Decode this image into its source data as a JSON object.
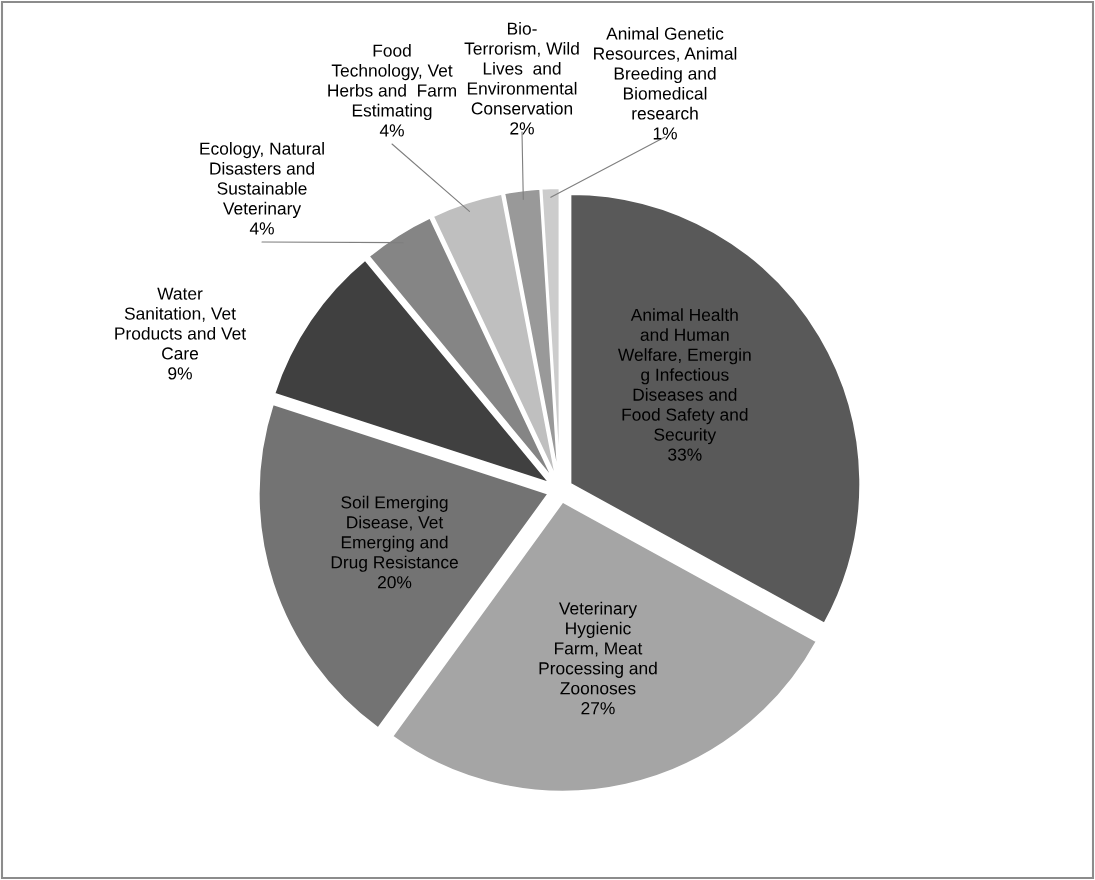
{
  "chart_data": {
    "type": "pie",
    "categories": [
      "Animal Health\nand Human\nWelfare, Emergin\ng Infectious\nDiseases and\nFood Safety and\nSecurity",
      "Veterinary\nHygienic\nFarm, Meat\nProcessing and\nZoonoses",
      "Soil Emerging\nDisease, Vet\nEmerging and\nDrug Resistance",
      "Water\nSanitation, Vet\nProducts and Vet\nCare",
      "Ecology, Natural\nDisasters and\nSustainable\nVeterinary",
      "Food\nTechnology, Vet\nHerbs and  Farm\nEstimating",
      "Bio-\nTerrorism, Wild\nLives  and\nEnvironmental\nConservation",
      "Animal Genetic\nResources, Animal\nBreeding and\nBiomedical\nresearch"
    ],
    "values": [
      33,
      27,
      20,
      9,
      4,
      4,
      2,
      1
    ],
    "value_labels": [
      "33%",
      "27%",
      "20%",
      "9%",
      "4%",
      "4%",
      "2%",
      "1%"
    ],
    "colors": [
      "#595959",
      "#a5a5a5",
      "#737373",
      "#404040",
      "#858585",
      "#bfbfbf",
      "#999999",
      "#cccccc"
    ]
  }
}
